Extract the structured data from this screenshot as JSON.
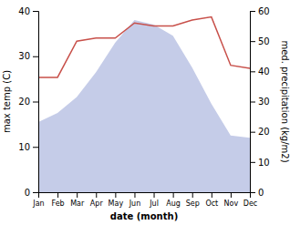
{
  "chart_data": {
    "type": "line",
    "xlabel": "date (month)",
    "ylabel": "max temp (C)",
    "y2label": "med. precipitation (kg/m2)",
    "categories": [
      "Jan",
      "Feb",
      "Mar",
      "Apr",
      "May",
      "Jun",
      "Jul",
      "Aug",
      "Sep",
      "Oct",
      "Nov",
      "Dec"
    ],
    "series": [
      {
        "type": "area",
        "color": "#c5cce8",
        "values": [
          15.5,
          17.5,
          21.0,
          26.5,
          33.0,
          38.0,
          37.0,
          34.5,
          27.5,
          19.5,
          12.5,
          12.0
        ]
      },
      {
        "type": "line",
        "color": "#c8504a",
        "axis": "y2",
        "values": [
          38,
          38,
          50,
          51,
          51,
          56,
          55,
          55,
          57,
          58,
          42,
          41
        ]
      }
    ],
    "ylim": [
      0,
      40
    ],
    "yticks": [
      0,
      10,
      20,
      30,
      40
    ],
    "y2lim": [
      0,
      60
    ],
    "y2ticks": [
      0,
      10,
      20,
      30,
      40,
      50,
      60
    ],
    "grid": false
  }
}
